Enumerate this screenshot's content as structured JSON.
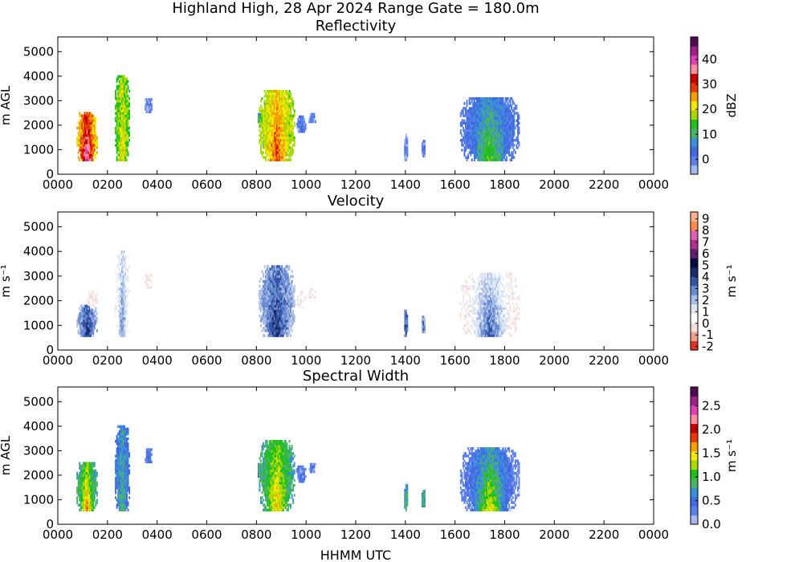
{
  "figure": {
    "title": "Highland High, 28 Apr 2024 Range Gate = 180.0m",
    "xlabel": "HHMM UTC"
  },
  "chart_data": [
    {
      "type": "heatmap",
      "title": "Reflectivity",
      "ylabel": "m AGL",
      "colorbar_label": "dBZ",
      "colorbar_ticks": [
        "0",
        "10",
        "20",
        "30",
        "40"
      ],
      "colorbar_range": [
        -6,
        49
      ],
      "colorbar_colors": [
        "#a6b8f2",
        "#5b82ea",
        "#4169e1",
        "#3a8fd8",
        "#49b36a",
        "#1fbf1f",
        "#a8d800",
        "#f0e800",
        "#f4a000",
        "#e83800",
        "#c80000",
        "#ff8ca0",
        "#e040b0",
        "#a0208a",
        "#500a50"
      ],
      "x_ticks": [
        "0000",
        "0200",
        "0400",
        "0600",
        "0800",
        "1000",
        "1200",
        "1400",
        "1600",
        "1800",
        "2000",
        "2200",
        "0000"
      ],
      "y_ticks": [
        "0",
        "1000",
        "2000",
        "3000",
        "4000",
        "5000"
      ],
      "xlim_hours": [
        0,
        24
      ],
      "ylim": [
        0,
        5600
      ],
      "echoes": [
        {
          "t0": 0.75,
          "t1": 1.6,
          "h0": 540,
          "h1": 2500,
          "level": 0.55,
          "core": 0.85
        },
        {
          "t0": 2.3,
          "t1": 2.9,
          "h0": 540,
          "h1": 3950,
          "level": 0.4,
          "core": 0.5
        },
        {
          "t0": 3.5,
          "t1": 3.8,
          "h0": 2500,
          "h1": 3100,
          "level": 0.1,
          "core": 0.1
        },
        {
          "t0": 8.05,
          "t1": 8.3,
          "h0": 1900,
          "h1": 2500,
          "level": 0.3,
          "core": 0.35
        },
        {
          "t0": 8.1,
          "t1": 9.55,
          "h0": 540,
          "h1": 3400,
          "level": 0.45,
          "core": 0.65
        },
        {
          "t0": 9.6,
          "t1": 10.0,
          "h0": 1700,
          "h1": 2400,
          "level": 0.1,
          "core": 0.12
        },
        {
          "t0": 10.1,
          "t1": 10.4,
          "h0": 2100,
          "h1": 2500,
          "level": 0.08,
          "core": 0.1
        },
        {
          "t0": 13.95,
          "t1": 14.1,
          "h0": 540,
          "h1": 1600,
          "level": 0.08,
          "core": 0.1
        },
        {
          "t0": 14.65,
          "t1": 14.8,
          "h0": 700,
          "h1": 1400,
          "level": 0.08,
          "core": 0.1
        },
        {
          "t0": 16.2,
          "t1": 18.6,
          "h0": 540,
          "h1": 3100,
          "level": 0.15,
          "core": 0.4
        }
      ]
    },
    {
      "type": "heatmap",
      "title": "Velocity",
      "ylabel": "m s⁻¹",
      "colorbar_label": "m s⁻¹",
      "colorbar_ticks": [
        "-2",
        "-1",
        "0",
        "1",
        "2",
        "3",
        "4",
        "5",
        "6",
        "7",
        "8",
        "9"
      ],
      "colorbar_range": [
        -2.3,
        9.6
      ],
      "colorbar_colors": [
        "#e03020",
        "#f0a090",
        "#f8e0e0",
        "#ffffff",
        "#dde6f5",
        "#a8bde6",
        "#6a8bd0",
        "#3454a4",
        "#1a2a6a",
        "#0a0a40",
        "#602070",
        "#b03090",
        "#e060b0",
        "#ff8c50",
        "#ffb090"
      ],
      "x_ticks": [
        "0000",
        "0200",
        "0400",
        "0600",
        "0800",
        "1000",
        "1200",
        "1400",
        "1600",
        "1800",
        "2000",
        "2200",
        "0000"
      ],
      "y_ticks": [
        "0",
        "1000",
        "2000",
        "3000",
        "4000",
        "5000"
      ],
      "xlim_hours": [
        0,
        24
      ],
      "ylim": [
        0,
        5600
      ],
      "echoes": [
        {
          "t0": 0.75,
          "t1": 1.6,
          "h0": 540,
          "h1": 1800,
          "level": 0.4,
          "core": 0.55
        },
        {
          "t0": 1.2,
          "t1": 1.6,
          "h0": 1700,
          "h1": 2400,
          "level": 0.18,
          "core": 0.2
        },
        {
          "t0": 2.3,
          "t1": 2.9,
          "h0": 540,
          "h1": 3950,
          "level": 0.25,
          "core": 0.45
        },
        {
          "t0": 3.5,
          "t1": 3.8,
          "h0": 2500,
          "h1": 3100,
          "level": 0.2,
          "core": 0.2
        },
        {
          "t0": 8.05,
          "t1": 8.3,
          "h0": 1900,
          "h1": 2500,
          "level": 0.28,
          "core": 0.3
        },
        {
          "t0": 8.1,
          "t1": 9.55,
          "h0": 540,
          "h1": 3400,
          "level": 0.4,
          "core": 0.55
        },
        {
          "t0": 9.6,
          "t1": 10.0,
          "h0": 1700,
          "h1": 2400,
          "level": 0.22,
          "core": 0.25
        },
        {
          "t0": 10.1,
          "t1": 10.4,
          "h0": 2100,
          "h1": 2500,
          "level": 0.22,
          "core": 0.24
        },
        {
          "t0": 13.95,
          "t1": 14.1,
          "h0": 540,
          "h1": 1600,
          "level": 0.45,
          "core": 0.5
        },
        {
          "t0": 14.65,
          "t1": 14.8,
          "h0": 700,
          "h1": 1400,
          "level": 0.4,
          "core": 0.45
        },
        {
          "t0": 16.2,
          "t1": 18.6,
          "h0": 540,
          "h1": 3100,
          "level": 0.22,
          "core": 0.5
        }
      ]
    },
    {
      "type": "heatmap",
      "title": "Spectral Width",
      "ylabel": "m AGL",
      "colorbar_label": "m s⁻¹",
      "colorbar_ticks": [
        "0.0",
        "0.5",
        "1.0",
        "1.5",
        "2.0",
        "2.5"
      ],
      "colorbar_range": [
        0,
        2.9
      ],
      "colorbar_colors": [
        "#a6b8f2",
        "#5b82ea",
        "#4169e1",
        "#3a8fd8",
        "#49b36a",
        "#1fbf1f",
        "#a8d800",
        "#f0e800",
        "#f4a000",
        "#e83800",
        "#c80000",
        "#ff8ca0",
        "#e040b0",
        "#a0208a",
        "#500a50"
      ],
      "x_ticks": [
        "0000",
        "0200",
        "0400",
        "0600",
        "0800",
        "1000",
        "1200",
        "1400",
        "1600",
        "1800",
        "2000",
        "2200",
        "0000"
      ],
      "y_ticks": [
        "0",
        "1000",
        "2000",
        "3000",
        "4000",
        "5000"
      ],
      "xlim_hours": [
        0,
        24
      ],
      "ylim": [
        0,
        5600
      ],
      "echoes": [
        {
          "t0": 0.75,
          "t1": 1.6,
          "h0": 540,
          "h1": 2500,
          "level": 0.3,
          "core": 0.6
        },
        {
          "t0": 2.3,
          "t1": 2.9,
          "h0": 540,
          "h1": 3950,
          "level": 0.2,
          "core": 0.3
        },
        {
          "t0": 3.5,
          "t1": 3.8,
          "h0": 2500,
          "h1": 3100,
          "level": 0.12,
          "core": 0.15
        },
        {
          "t0": 8.05,
          "t1": 8.3,
          "h0": 1900,
          "h1": 2500,
          "level": 0.25,
          "core": 0.3
        },
        {
          "t0": 8.1,
          "t1": 9.55,
          "h0": 540,
          "h1": 3400,
          "level": 0.3,
          "core": 0.55
        },
        {
          "t0": 9.6,
          "t1": 10.0,
          "h0": 1700,
          "h1": 2400,
          "level": 0.1,
          "core": 0.12
        },
        {
          "t0": 10.1,
          "t1": 10.4,
          "h0": 2100,
          "h1": 2500,
          "level": 0.1,
          "core": 0.12
        },
        {
          "t0": 13.95,
          "t1": 14.1,
          "h0": 540,
          "h1": 1600,
          "level": 0.25,
          "core": 0.3
        },
        {
          "t0": 14.65,
          "t1": 14.8,
          "h0": 700,
          "h1": 1400,
          "level": 0.25,
          "core": 0.3
        },
        {
          "t0": 16.2,
          "t1": 18.6,
          "h0": 540,
          "h1": 3100,
          "level": 0.12,
          "core": 0.5
        }
      ]
    }
  ]
}
